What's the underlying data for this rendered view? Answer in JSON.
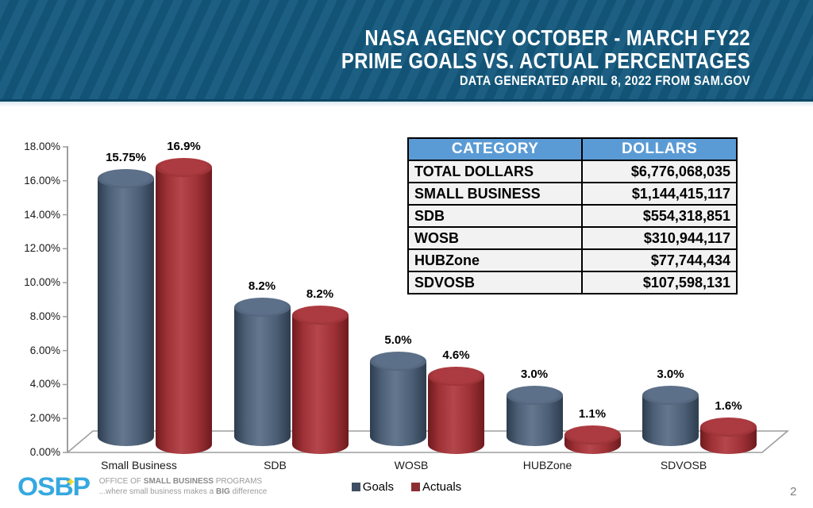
{
  "slide": {
    "title_line1": "NASA AGENCY OCTOBER - MARCH FY22",
    "title_line2": "PRIME GOALS VS. ACTUAL PERCENTAGES",
    "title_line3": "DATA GENERATED APRIL 8, 2022 FROM SAM.GOV",
    "page_number": "2",
    "banner_color": "#13587c"
  },
  "chart_data": {
    "type": "bar",
    "subtype": "3d-cylinder",
    "categories": [
      "Small Business",
      "SDB",
      "WOSB",
      "HUBZone",
      "SDVOSB"
    ],
    "series": [
      {
        "name": "Goals",
        "values": [
          15.75,
          8.2,
          5.0,
          3.0,
          3.0
        ],
        "labels": [
          "15.75%",
          "8.2%",
          "5.0%",
          "3.0%",
          "3.0%"
        ],
        "color": "#4c5f76",
        "color_dark": "#2e3d4f",
        "color_light": "#64778f",
        "cap_color": "#5d7089",
        "cap_edge": "#3c4d62"
      },
      {
        "name": "Actuals",
        "values": [
          16.9,
          8.2,
          4.6,
          1.1,
          1.6
        ],
        "labels": [
          "16.9%",
          "8.2%",
          "4.6%",
          "1.1%",
          "1.6%"
        ],
        "color": "#9e3136",
        "color_dark": "#6e1b1f",
        "color_light": "#b4464c",
        "cap_color": "#ab3b40",
        "cap_edge": "#7e2125"
      }
    ],
    "ylim": [
      0,
      18
    ],
    "ytick_step": 2,
    "yticks": [
      "18.00%",
      "16.00%",
      "14.00%",
      "12.00%",
      "10.00%",
      "8.00%",
      "6.00%",
      "4.00%",
      "2.00%",
      "0.00%"
    ],
    "grid": false,
    "legend_position": "bottom"
  },
  "table": {
    "headers": [
      "CATEGORY",
      "DOLLARS"
    ],
    "header_bg": "#5b9bd5",
    "rows": [
      [
        "TOTAL DOLLARS",
        "$6,776,068,035"
      ],
      [
        "SMALL BUSINESS",
        "$1,144,415,117"
      ],
      [
        "SDB",
        "$554,318,851"
      ],
      [
        "WOSB",
        "$310,944,117"
      ],
      [
        "HUBZone",
        "$77,744,434"
      ],
      [
        "SDVOSB",
        "$107,598,131"
      ]
    ]
  },
  "legend": {
    "goals_label": "Goals",
    "goals_color": "#3f4e63",
    "actuals_label": "Actuals",
    "actuals_color": "#8c2f33"
  },
  "footer": {
    "logo_text": "OSBP",
    "logo_star": "✦",
    "org_line1_pre": "OFFICE OF ",
    "org_line1_bold": "SMALL BUSINESS",
    "org_line1_post": " PROGRAMS",
    "org_line2_pre": "...where small business makes a ",
    "org_line2_bold": "BIG",
    "org_line2_post": " difference"
  }
}
